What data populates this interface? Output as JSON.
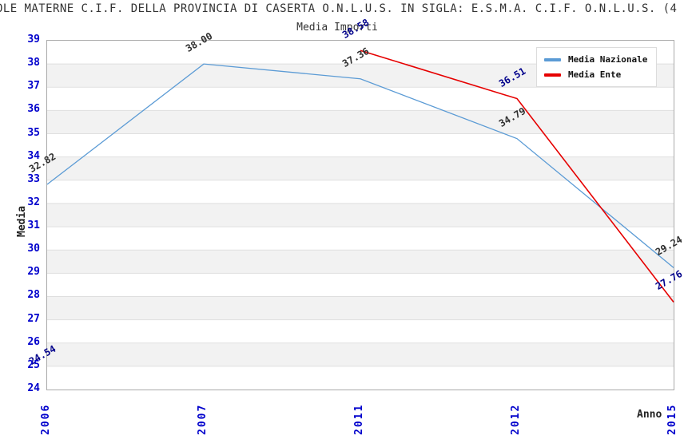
{
  "title": "OLE MATERNE C.I.F. DELLA PROVINCIA DI CASERTA O.N.L.U.S. IN SIGLA: E.S.M.A. C.I.F. O.N.L.U.S. (4",
  "subtitle": "Media Importi",
  "chart_data": {
    "type": "line",
    "title": "Media Importi",
    "xlabel": "Anno",
    "ylabel": "Media",
    "ylim": [
      24,
      39
    ],
    "yticks": [
      24,
      25,
      26,
      27,
      28,
      29,
      30,
      31,
      32,
      33,
      34,
      35,
      36,
      37,
      38,
      39
    ],
    "grid": "alternating-horizontal-bands",
    "legend_position": "top-right",
    "categories": [
      "2006",
      "2007",
      "2011",
      "2012",
      "2015"
    ],
    "series": [
      {
        "name": "Media Nazionale",
        "color": "#5B9BD5",
        "line_width": 1.3,
        "values": [
          32.82,
          38.0,
          37.36,
          34.79,
          29.24
        ],
        "labels": [
          "32.82",
          "38.00",
          "37.36",
          "34.79",
          "29.24"
        ],
        "label_color": "#2F2F2F"
      },
      {
        "name": "Media Ente",
        "color": "#E60000",
        "line_width": 1.6,
        "values": [
          24.54,
          null,
          38.58,
          36.51,
          27.76
        ],
        "labels": [
          "24.54",
          "",
          "38.58",
          "36.51",
          "27.76"
        ],
        "label_color": "#00008B"
      }
    ]
  },
  "colors": {
    "band": "#F2F2F2",
    "grid_line": "#DFDFDF",
    "plot_border": "#AAAAAA",
    "tick_label": "#0000CC",
    "axis_label": "#222222",
    "title": "#333333",
    "legend_border": "#DCDCDC"
  }
}
